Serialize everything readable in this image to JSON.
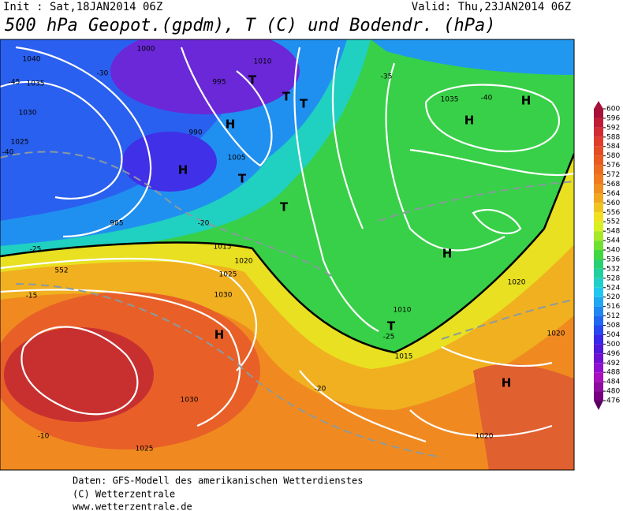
{
  "header": {
    "init": "Init : Sat,18JAN2014 06Z",
    "valid": "Valid: Thu,23JAN2014 06Z",
    "title": "500 hPa Geopot.(gpdm), T (C) und Bodendr. (hPa)"
  },
  "map_labels": [
    "1040",
    "1035",
    "1030",
    "1025",
    "-45",
    "-40",
    "1000",
    "995",
    "990",
    "985",
    "-30",
    "-25",
    "-20",
    "-15",
    "-10",
    "1005",
    "1010",
    "1015",
    "1020",
    "1025",
    "1030",
    "1035",
    "H",
    "H",
    "H",
    "H",
    "T",
    "T",
    "T",
    "T",
    "T",
    "H",
    "H",
    "H",
    "T",
    "1020",
    "1020",
    "1020",
    "1030",
    "1025",
    "-35",
    "-40",
    "-20",
    "-25",
    "1015",
    "1010",
    "552"
  ],
  "colorbar": {
    "ticks": [
      600,
      596,
      592,
      588,
      584,
      580,
      576,
      572,
      568,
      564,
      560,
      556,
      552,
      548,
      544,
      540,
      536,
      532,
      528,
      524,
      520,
      516,
      512,
      508,
      504,
      500,
      496,
      492,
      488,
      484,
      480,
      476
    ],
    "colors": [
      "#a8103a",
      "#c01c38",
      "#d02c34",
      "#e03c2c",
      "#e44c24",
      "#e85c20",
      "#ec6c20",
      "#f07c20",
      "#f09020",
      "#f0a820",
      "#f0c420",
      "#f0e020",
      "#d8f020",
      "#a8e828",
      "#70e030",
      "#40d840",
      "#28d070",
      "#20d0a0",
      "#20d0c8",
      "#20c8f0",
      "#20a8f0",
      "#2088f0",
      "#2068f0",
      "#2848f0",
      "#3828e8",
      "#5018d8",
      "#7010d0",
      "#9010d0",
      "#a810c0",
      "#900ca0",
      "#780080",
      "#580060"
    ]
  },
  "footer": [
    "Daten: GFS-Modell des amerikanischen Wetterdienstes",
    "(C) Wetterzentrale",
    "www.wetterzentrale.de"
  ]
}
